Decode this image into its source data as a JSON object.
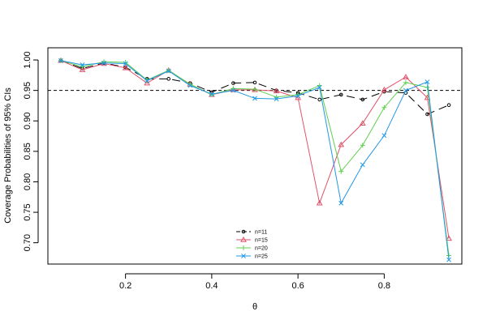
{
  "chart_data": {
    "type": "line",
    "title": "",
    "xlabel": "θ",
    "ylabel": "Coverage Probabilities of 95% CIs",
    "xlim": [
      0.02,
      0.98
    ],
    "ylim": [
      0.665,
      1.02
    ],
    "x_ticks": [
      "0.2",
      "0.4",
      "0.6",
      "0.8"
    ],
    "x_tick_values": [
      0.2,
      0.4,
      0.6,
      0.8
    ],
    "y_ticks": [
      "0.70",
      "0.75",
      "0.80",
      "0.85",
      "0.90",
      "0.95",
      "1.00"
    ],
    "y_tick_values": [
      0.7,
      0.75,
      0.8,
      0.85,
      0.9,
      0.95,
      1.0
    ],
    "reference_line": {
      "y": 0.95,
      "style": "dashed",
      "color": "#000000"
    },
    "grid": false,
    "legend_position": "bottom-center",
    "x": [
      0.05,
      0.1,
      0.15,
      0.2,
      0.25,
      0.3,
      0.35,
      0.4,
      0.45,
      0.5,
      0.55,
      0.6,
      0.65,
      0.7,
      0.75,
      0.8,
      0.85,
      0.9,
      0.95
    ],
    "series": [
      {
        "name": "n=11",
        "color": "#000000",
        "marker": "circle",
        "dash": "10,6",
        "values": [
          0.999,
          0.986,
          0.995,
          0.988,
          0.969,
          0.969,
          0.962,
          0.947,
          0.962,
          0.963,
          0.95,
          0.946,
          0.935,
          0.943,
          0.935,
          0.948,
          0.946,
          0.911,
          0.926
        ]
      },
      {
        "name": "n=15",
        "color": "#DF536B",
        "marker": "triangle",
        "dash": "",
        "values": [
          0.999,
          0.984,
          0.994,
          0.987,
          0.962,
          0.983,
          0.96,
          0.943,
          0.951,
          0.951,
          0.949,
          0.938,
          0.765,
          0.861,
          0.896,
          0.951,
          0.972,
          0.938,
          0.707
        ]
      },
      {
        "name": "n=20",
        "color": "#61D04F",
        "marker": "plus",
        "dash": "",
        "values": [
          0.999,
          0.989,
          0.997,
          0.996,
          0.967,
          0.983,
          0.96,
          0.943,
          0.953,
          0.952,
          0.939,
          0.943,
          0.958,
          0.817,
          0.86,
          0.922,
          0.963,
          0.955,
          0.679
        ]
      },
      {
        "name": "n=25",
        "color": "#2297E6",
        "marker": "x",
        "dash": "",
        "values": [
          0.999,
          0.992,
          0.995,
          0.994,
          0.966,
          0.982,
          0.958,
          0.944,
          0.95,
          0.937,
          0.936,
          0.941,
          0.955,
          0.765,
          0.828,
          0.876,
          0.95,
          0.964,
          0.672
        ]
      }
    ]
  }
}
